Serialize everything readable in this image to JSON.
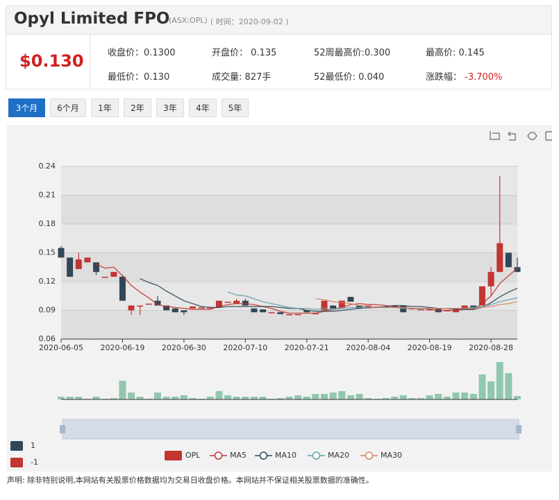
{
  "header": {
    "title": "Opyl Limited FPO",
    "code": "(ASX:OPL)",
    "time": "( 时间：2020-09-02 )",
    "price": "$0.130"
  },
  "stats": [
    {
      "label": "收盘价：",
      "value": "0.1300"
    },
    {
      "label": "开盘价：",
      "value": " 0.135"
    },
    {
      "label": "52周最高价:",
      "value": "0.300"
    },
    {
      "label": "最高价:",
      "value": " 0.145"
    },
    {
      "label": "最低价：",
      "value": "0.130"
    },
    {
      "label": "成交量:",
      "value": " 827手"
    },
    {
      "label": "52最低价:",
      "value": " 0.040"
    },
    {
      "label": "涨跌幅：",
      "value": " -3.700%"
    }
  ],
  "tabs": [
    "3个月",
    "6个月",
    "1年",
    "2年",
    "3年",
    "4年",
    "5年"
  ],
  "disclaimer": "声明: 除非特别说明,本网站有关股票价格数据均为交易日收盘价格。本网站并不保证相关股票数据的准确性。",
  "chart_data": {
    "type": "candlestick",
    "categories": [
      "2020-06-05",
      null,
      null,
      null,
      null,
      null,
      null,
      "2020-06-19",
      null,
      null,
      null,
      null,
      null,
      null,
      "2020-06-30",
      null,
      null,
      null,
      null,
      null,
      null,
      "2020-07-10",
      null,
      null,
      null,
      null,
      null,
      null,
      "2020-07-21",
      null,
      null,
      null,
      null,
      null,
      null,
      "2020-08-04",
      null,
      null,
      null,
      null,
      null,
      null,
      "2020-08-19",
      null,
      null,
      null,
      null,
      null,
      null,
      "2020-08-28",
      null,
      null,
      null
    ],
    "ylim": [
      0.06,
      0.24
    ],
    "yticks": [
      0.06,
      0.09,
      0.12,
      0.15,
      0.18,
      0.21,
      0.24
    ],
    "series": [
      {
        "name": "OPL",
        "up_color": "#c23531",
        "down_color": "#314656",
        "open": [
          0.155,
          0.145,
          0.133,
          0.14,
          0.14,
          0.125,
          0.125,
          0.125,
          0.09,
          0.095,
          0.097,
          0.1,
          0.095,
          0.092,
          0.09,
          0.092,
          0.093,
          0.093,
          0.093,
          0.099,
          0.097,
          0.1,
          0.092,
          0.091,
          0.088,
          0.088,
          0.086,
          0.086,
          0.09,
          0.087,
          0.09,
          0.095,
          0.093,
          0.104,
          0.095,
          0.092,
          0.094,
          0.094,
          0.095,
          0.095,
          0.092,
          0.091,
          0.091,
          0.092,
          0.09,
          0.088,
          0.091,
          0.095,
          0.095,
          0.115,
          0.13,
          0.15,
          0.135
        ],
        "close": [
          0.145,
          0.125,
          0.143,
          0.145,
          0.13,
          0.125,
          0.13,
          0.1,
          0.095,
          0.095,
          0.097,
          0.095,
          0.09,
          0.088,
          0.088,
          0.094,
          0.093,
          0.093,
          0.1,
          0.099,
          0.1,
          0.095,
          0.088,
          0.088,
          0.088,
          0.086,
          0.086,
          0.086,
          0.088,
          0.087,
          0.1,
          0.092,
          0.1,
          0.099,
          0.092,
          0.095,
          0.094,
          0.094,
          0.093,
          0.088,
          0.092,
          0.091,
          0.091,
          0.088,
          0.09,
          0.092,
          0.095,
          0.092,
          0.115,
          0.13,
          0.16,
          0.135,
          0.13
        ],
        "low": [
          0.145,
          0.125,
          0.133,
          0.14,
          0.127,
          0.125,
          0.125,
          0.1,
          0.085,
          0.085,
          0.097,
          0.095,
          0.09,
          0.088,
          0.085,
          0.092,
          0.093,
          0.093,
          0.093,
          0.099,
          0.097,
          0.095,
          0.088,
          0.088,
          0.088,
          0.086,
          0.086,
          0.086,
          0.088,
          0.087,
          0.09,
          0.092,
          0.093,
          0.099,
          0.092,
          0.092,
          0.094,
          0.094,
          0.093,
          0.088,
          0.092,
          0.091,
          0.091,
          0.088,
          0.09,
          0.088,
          0.091,
          0.092,
          0.095,
          0.105,
          0.13,
          0.135,
          0.13
        ],
        "high": [
          0.157,
          0.145,
          0.15,
          0.145,
          0.14,
          0.125,
          0.13,
          0.127,
          0.095,
          0.095,
          0.097,
          0.105,
          0.095,
          0.092,
          0.09,
          0.094,
          0.093,
          0.093,
          0.1,
          0.099,
          0.102,
          0.102,
          0.092,
          0.091,
          0.088,
          0.088,
          0.086,
          0.086,
          0.09,
          0.087,
          0.1,
          0.095,
          0.1,
          0.104,
          0.095,
          0.095,
          0.094,
          0.094,
          0.095,
          0.095,
          0.092,
          0.091,
          0.091,
          0.092,
          0.09,
          0.092,
          0.095,
          0.095,
          0.115,
          0.135,
          0.23,
          0.15,
          0.145
        ]
      }
    ],
    "ma": [
      {
        "name": "MA5",
        "color": "#c23531",
        "values": [
          null,
          null,
          null,
          null,
          0.138,
          0.134,
          0.135,
          0.126,
          0.116,
          0.109,
          0.103,
          0.096,
          0.094,
          0.093,
          0.092,
          0.091,
          0.091,
          0.091,
          0.094,
          0.096,
          0.097,
          0.097,
          0.096,
          0.094,
          0.092,
          0.089,
          0.087,
          0.087,
          0.087,
          0.087,
          0.089,
          0.091,
          0.093,
          0.096,
          0.097,
          0.096,
          0.096,
          0.095,
          0.094,
          0.093,
          0.092,
          0.092,
          0.091,
          0.09,
          0.09,
          0.09,
          0.091,
          0.091,
          0.097,
          0.105,
          0.118,
          0.126,
          0.134
        ]
      },
      {
        "name": "MA10",
        "color": "#2f4554",
        "values": [
          null,
          null,
          null,
          null,
          null,
          null,
          null,
          null,
          null,
          0.123,
          0.119,
          0.116,
          0.11,
          0.105,
          0.1,
          0.097,
          0.094,
          0.093,
          0.093,
          0.094,
          0.094,
          0.094,
          0.094,
          0.094,
          0.094,
          0.093,
          0.092,
          0.092,
          0.09,
          0.089,
          0.089,
          0.089,
          0.09,
          0.091,
          0.092,
          0.093,
          0.093,
          0.094,
          0.095,
          0.095,
          0.094,
          0.094,
          0.093,
          0.092,
          0.092,
          0.091,
          0.091,
          0.091,
          0.093,
          0.098,
          0.104,
          0.109,
          0.113
        ]
      },
      {
        "name": "MA20",
        "color": "#61a0a8",
        "values": [
          null,
          null,
          null,
          null,
          null,
          null,
          null,
          null,
          null,
          null,
          null,
          null,
          null,
          null,
          null,
          null,
          null,
          null,
          null,
          0.109,
          0.106,
          0.105,
          0.102,
          0.099,
          0.097,
          0.095,
          0.093,
          0.092,
          0.092,
          0.091,
          0.092,
          0.091,
          0.092,
          0.093,
          0.093,
          0.093,
          0.093,
          0.093,
          0.093,
          0.092,
          0.092,
          0.091,
          0.092,
          0.092,
          0.092,
          0.092,
          0.092,
          0.093,
          0.094,
          0.096,
          0.099,
          0.101,
          0.103
        ]
      },
      {
        "name": "MA30",
        "color": "#d48265",
        "values": [
          null,
          null,
          null,
          null,
          null,
          null,
          null,
          null,
          null,
          null,
          null,
          null,
          null,
          null,
          null,
          null,
          null,
          null,
          null,
          null,
          null,
          null,
          null,
          null,
          null,
          null,
          null,
          null,
          null,
          0.102,
          0.101,
          0.099,
          0.098,
          0.097,
          0.095,
          0.094,
          0.093,
          0.093,
          0.093,
          0.093,
          0.092,
          0.092,
          0.092,
          0.092,
          0.092,
          0.092,
          0.092,
          0.092,
          0.093,
          0.094,
          0.096,
          0.097,
          0.099
        ]
      }
    ],
    "volume": {
      "color": "#91c7ae",
      "values": [
        660,
        660,
        660,
        165,
        660,
        165,
        330,
        4460,
        1650,
        660,
        165,
        1650,
        660,
        660,
        990,
        330,
        165,
        660,
        1980,
        990,
        660,
        660,
        660,
        660,
        165,
        330,
        660,
        990,
        660,
        1320,
        1320,
        1650,
        1980,
        990,
        1320,
        330,
        165,
        330,
        660,
        990,
        330,
        330,
        990,
        1320,
        660,
        1650,
        1650,
        1320,
        5940,
        4290,
        8910,
        6270,
        827
      ]
    },
    "visual_map": [
      {
        "value": 1,
        "color": "#314656"
      },
      {
        "value": -1,
        "color": "#c23531"
      }
    ]
  }
}
